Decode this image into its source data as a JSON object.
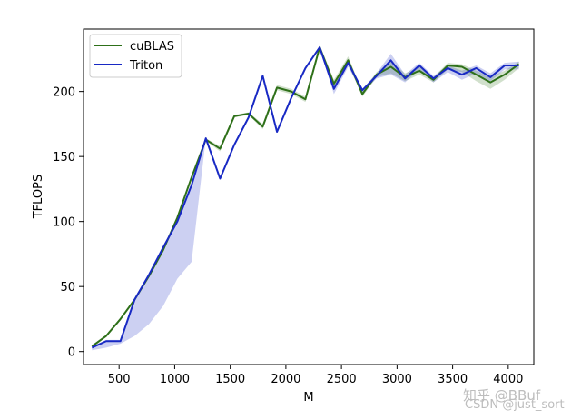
{
  "chart_data": {
    "type": "line",
    "xlabel": "M",
    "ylabel": "TFLOPS",
    "xlim": [
      180,
      4230
    ],
    "ylim": [
      -10,
      248
    ],
    "xticks": [
      500,
      1000,
      1500,
      2000,
      2500,
      3000,
      3500,
      4000
    ],
    "yticks": [
      0,
      50,
      100,
      150,
      200
    ],
    "legend_position": "top-left",
    "grid": false,
    "x": [
      256,
      384,
      512,
      640,
      768,
      896,
      1024,
      1152,
      1280,
      1408,
      1536,
      1664,
      1792,
      1920,
      2048,
      2176,
      2304,
      2432,
      2560,
      2688,
      2816,
      2944,
      3072,
      3200,
      3328,
      3456,
      3584,
      3712,
      3840,
      3968,
      4096
    ],
    "series": [
      {
        "name": "cuBLAS",
        "color": "#2e7019",
        "values": [
          4,
          12,
          25,
          40,
          58,
          78,
          103,
          134,
          163,
          156,
          181,
          183,
          173,
          203,
          200,
          194,
          234,
          206,
          224,
          198,
          213,
          219,
          211,
          216,
          209,
          220,
          219,
          213,
          207,
          213,
          221
        ],
        "band_low": [
          3,
          11,
          24,
          39,
          57,
          77,
          102,
          133,
          162,
          154,
          180,
          182,
          171,
          201,
          198,
          192,
          232,
          203,
          221,
          196,
          211,
          214,
          208,
          213,
          207,
          217,
          215,
          208,
          202,
          209,
          218
        ],
        "band_high": [
          5,
          13,
          26,
          41,
          59,
          79,
          104,
          135,
          164,
          158,
          182,
          184,
          175,
          205,
          202,
          196,
          236,
          209,
          227,
          200,
          215,
          223,
          214,
          219,
          211,
          222,
          221,
          216,
          211,
          216,
          223
        ]
      },
      {
        "name": "Triton",
        "color": "#1829c4",
        "values": [
          3,
          8,
          8,
          40,
          59,
          80,
          100,
          128,
          164,
          133,
          159,
          180,
          212,
          169,
          195,
          218,
          234,
          202,
          222,
          201,
          212,
          224,
          210,
          220,
          210,
          218,
          213,
          218,
          211,
          220,
          220
        ],
        "band_low": [
          1,
          3,
          6,
          12,
          21,
          35,
          56,
          69,
          164,
          133,
          159,
          180,
          212,
          169,
          195,
          218,
          233,
          198,
          219,
          199,
          210,
          213,
          207,
          217,
          207,
          215,
          209,
          214,
          208,
          217,
          217
        ],
        "band_high": [
          4,
          9,
          9,
          41,
          60,
          81,
          101,
          129,
          165,
          134,
          160,
          181,
          213,
          170,
          196,
          219,
          235,
          205,
          224,
          202,
          214,
          229,
          213,
          222,
          212,
          220,
          216,
          220,
          214,
          222,
          223
        ]
      }
    ]
  },
  "watermark": {
    "line1": "知乎 @BBuf",
    "line2": "CSDN @just_sort"
  }
}
